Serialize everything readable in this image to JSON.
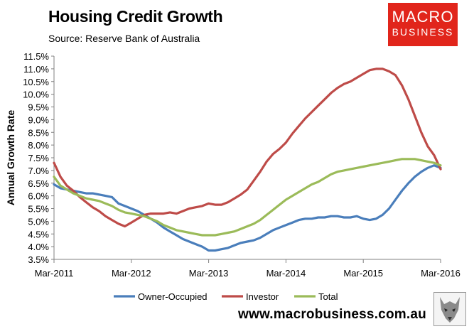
{
  "header": {
    "title": "Housing Credit Growth",
    "subtitle": "Source: Reserve Bank of Australia"
  },
  "logo": {
    "line1": "MACRO",
    "line2": "BUSINESS",
    "color": "#e1251b"
  },
  "footer": {
    "url": "www.macrobusiness.com.au"
  },
  "chart_data": {
    "type": "line",
    "ylabel": "Annual Growth Rate",
    "xlabel": "",
    "ylim": [
      3.5,
      11.5
    ],
    "yticks": [
      "3.5%",
      "4.0%",
      "4.5%",
      "5.0%",
      "5.5%",
      "6.0%",
      "6.5%",
      "7.0%",
      "7.5%",
      "8.0%",
      "8.5%",
      "9.0%",
      "9.5%",
      "10.0%",
      "10.5%",
      "11.0%",
      "11.5%"
    ],
    "xticks": [
      "Mar-2011",
      "Mar-2012",
      "Mar-2013",
      "Mar-2014",
      "Mar-2015",
      "Mar-2016"
    ],
    "grid": false,
    "legend": "bottom",
    "months": [
      "2011-03",
      "2011-04",
      "2011-05",
      "2011-06",
      "2011-07",
      "2011-08",
      "2011-09",
      "2011-10",
      "2011-11",
      "2011-12",
      "2012-01",
      "2012-02",
      "2012-03",
      "2012-04",
      "2012-05",
      "2012-06",
      "2012-07",
      "2012-08",
      "2012-09",
      "2012-10",
      "2012-11",
      "2012-12",
      "2013-01",
      "2013-02",
      "2013-03",
      "2013-04",
      "2013-05",
      "2013-06",
      "2013-07",
      "2013-08",
      "2013-09",
      "2013-10",
      "2013-11",
      "2013-12",
      "2014-01",
      "2014-02",
      "2014-03",
      "2014-04",
      "2014-05",
      "2014-06",
      "2014-07",
      "2014-08",
      "2014-09",
      "2014-10",
      "2014-11",
      "2014-12",
      "2015-01",
      "2015-02",
      "2015-03",
      "2015-04",
      "2015-05",
      "2015-06",
      "2015-07",
      "2015-08",
      "2015-09",
      "2015-10",
      "2015-11",
      "2015-12",
      "2016-01",
      "2016-02",
      "2016-03"
    ],
    "series": [
      {
        "name": "Owner-Occupied",
        "color": "#4a7ebb",
        "values": [
          6.45,
          6.3,
          6.25,
          6.2,
          6.15,
          6.1,
          6.1,
          6.05,
          6.0,
          5.95,
          5.7,
          5.6,
          5.5,
          5.4,
          5.25,
          5.1,
          4.95,
          4.75,
          4.6,
          4.45,
          4.3,
          4.2,
          4.1,
          4.0,
          3.85,
          3.85,
          3.9,
          3.95,
          4.05,
          4.15,
          4.2,
          4.25,
          4.35,
          4.5,
          4.65,
          4.75,
          4.85,
          4.95,
          5.05,
          5.1,
          5.1,
          5.15,
          5.15,
          5.2,
          5.2,
          5.15,
          5.15,
          5.2,
          5.1,
          5.05,
          5.1,
          5.25,
          5.5,
          5.85,
          6.2,
          6.5,
          6.75,
          6.95,
          7.1,
          7.2,
          7.1
        ]
      },
      {
        "name": "Investor",
        "color": "#be4b48",
        "values": [
          7.3,
          6.75,
          6.4,
          6.2,
          5.95,
          5.75,
          5.55,
          5.4,
          5.2,
          5.05,
          4.9,
          4.8,
          4.95,
          5.1,
          5.25,
          5.3,
          5.3,
          5.3,
          5.35,
          5.3,
          5.4,
          5.5,
          5.55,
          5.6,
          5.7,
          5.65,
          5.65,
          5.75,
          5.9,
          6.05,
          6.25,
          6.6,
          6.95,
          7.35,
          7.65,
          7.85,
          8.1,
          8.45,
          8.75,
          9.05,
          9.3,
          9.55,
          9.8,
          10.05,
          10.25,
          10.4,
          10.5,
          10.65,
          10.8,
          10.95,
          11.0,
          11.0,
          10.9,
          10.75,
          10.35,
          9.8,
          9.15,
          8.5,
          7.95,
          7.6,
          7.05
        ]
      },
      {
        "name": "Total",
        "color": "#9bbb59",
        "values": [
          6.75,
          6.4,
          6.25,
          6.1,
          6.0,
          5.9,
          5.85,
          5.8,
          5.7,
          5.6,
          5.45,
          5.35,
          5.3,
          5.25,
          5.2,
          5.1,
          5.0,
          4.85,
          4.75,
          4.65,
          4.6,
          4.55,
          4.5,
          4.45,
          4.45,
          4.45,
          4.5,
          4.55,
          4.6,
          4.7,
          4.8,
          4.9,
          5.05,
          5.25,
          5.45,
          5.65,
          5.85,
          6.0,
          6.15,
          6.3,
          6.45,
          6.55,
          6.7,
          6.85,
          6.95,
          7.0,
          7.05,
          7.1,
          7.15,
          7.2,
          7.25,
          7.3,
          7.35,
          7.4,
          7.45,
          7.45,
          7.45,
          7.4,
          7.35,
          7.3,
          7.2
        ]
      }
    ]
  }
}
